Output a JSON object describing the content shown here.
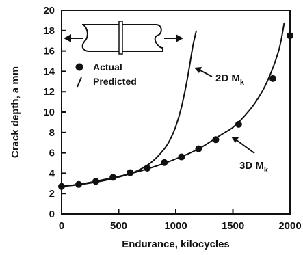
{
  "chart_data": {
    "type": "scatter",
    "title": "",
    "xlabel": "Endurance, kilocycles",
    "ylabel": "Crack depth, a  mm",
    "xlim": [
      0,
      2000
    ],
    "ylim": [
      0,
      20
    ],
    "x_ticks": [
      0,
      500,
      1000,
      1500,
      2000
    ],
    "y_ticks": [
      0,
      2,
      4,
      6,
      8,
      10,
      12,
      14,
      16,
      18,
      20
    ],
    "grid": false,
    "legend_position": "top-left",
    "legend": [
      {
        "label": "Actual",
        "marker": "filled-circle"
      },
      {
        "label": "Predicted",
        "marker": "line"
      }
    ],
    "series": [
      {
        "name": "Actual",
        "kind": "points",
        "x": [
          0,
          150,
          300,
          450,
          600,
          750,
          900,
          1050,
          1200,
          1350,
          1550,
          1850,
          2000
        ],
        "y": [
          2.7,
          2.9,
          3.2,
          3.6,
          4.05,
          4.5,
          5.05,
          5.6,
          6.4,
          7.3,
          8.8,
          13.3,
          17.5
        ]
      },
      {
        "name": "Predicted",
        "kind": "line",
        "label": "2D M",
        "label_subscript": "k",
        "x": [
          0,
          200,
          400,
          600,
          700,
          800,
          900,
          950,
          1000,
          1050,
          1100,
          1150,
          1180
        ],
        "y": [
          2.7,
          2.95,
          3.35,
          3.95,
          4.45,
          5.2,
          6.4,
          7.3,
          8.6,
          10.5,
          13.2,
          16.5,
          18
        ]
      },
      {
        "name": "Predicted",
        "kind": "line",
        "label": "3D M",
        "label_subscript": "k",
        "x": [
          0,
          200,
          400,
          600,
          800,
          1000,
          1200,
          1400,
          1500,
          1600,
          1700,
          1800,
          1900,
          1950
        ],
        "y": [
          2.7,
          3.0,
          3.45,
          3.95,
          4.6,
          5.4,
          6.4,
          7.8,
          8.5,
          9.6,
          11.0,
          13.0,
          16.0,
          18.8
        ]
      }
    ],
    "annotations": [
      {
        "text": "2D M",
        "subscript": "k",
        "arrow_to": [
          1205,
          15.1
        ]
      },
      {
        "text": "3D M",
        "subscript": "k",
        "arrow_to": [
          1390,
          7.6
        ]
      }
    ],
    "inset": "specimen-with-arrows"
  }
}
